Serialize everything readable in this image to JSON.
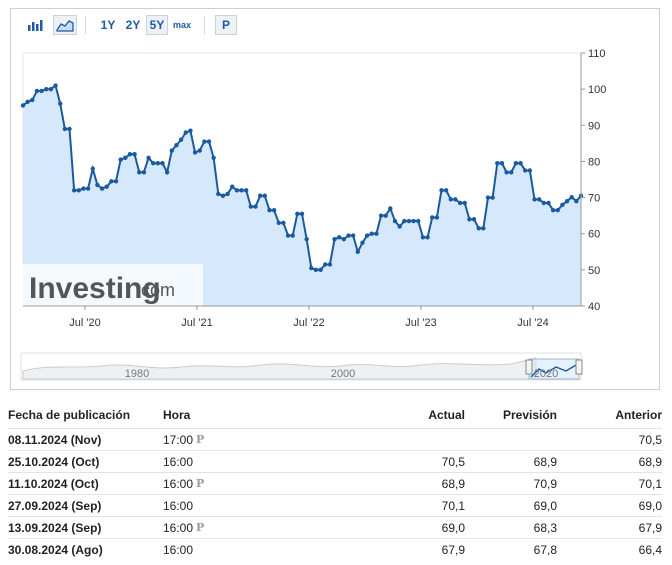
{
  "toolbar": {
    "chart_types": [
      "bar-chart-icon",
      "area-chart-icon"
    ],
    "ranges": [
      "1Y",
      "2Y",
      "5Y",
      "max"
    ],
    "selected_range": "5Y",
    "pin_label": "P"
  },
  "brand": {
    "logo_text": "Investing",
    "logo_suffix": ".com"
  },
  "colors": {
    "line": "#1a5aa0",
    "fill": "#d6e8fb",
    "positive": "#2a9d18",
    "negative": "#e0151b"
  },
  "chart_data": {
    "type": "area",
    "title": "",
    "xlabel": "",
    "ylabel": "",
    "ylim": [
      40,
      110
    ],
    "y_ticks": [
      40,
      50,
      60,
      70,
      80,
      90,
      100,
      110
    ],
    "x_tick_labels": [
      "Jul '20",
      "Jul '21",
      "Jul '22",
      "Jul '23",
      "Jul '24"
    ],
    "navigator_labels": [
      "1980",
      "2000",
      "2020"
    ],
    "series": [
      {
        "values": [
          95.5,
          96.5,
          97,
          99.5,
          99.5,
          100,
          100,
          101,
          96,
          89,
          89,
          72,
          72,
          72.5,
          72.5,
          78,
          73.5,
          72.5,
          73,
          74.5,
          74.5,
          80.5,
          81,
          82,
          82,
          77,
          77,
          81,
          79.5,
          79.5,
          79.5,
          77,
          83,
          84.5,
          86,
          88,
          88.5,
          82.5,
          83,
          85.5,
          85.5,
          81,
          71,
          70.5,
          71,
          73,
          72,
          72,
          72,
          67.5,
          67.5,
          70.5,
          70.5,
          66.5,
          66.5,
          63,
          63,
          59.5,
          59.5,
          65.5,
          65.5,
          58.5,
          50.5,
          50,
          50,
          51.5,
          51.5,
          58.5,
          59,
          58.5,
          59.5,
          59.5,
          55,
          57.5,
          59.5,
          60,
          60,
          65,
          65,
          67,
          63.5,
          62,
          63.5,
          63.5,
          63.5,
          63.5,
          59,
          59,
          64.5,
          64.5,
          72,
          72,
          69.5,
          69.5,
          68.5,
          68.5,
          64,
          64,
          61.5,
          61.5,
          70,
          70,
          79.5,
          79.5,
          77,
          77,
          79.5,
          79.5,
          77.5,
          77.5,
          69.5,
          69.5,
          68.5,
          68.5,
          66.5,
          66.5,
          68,
          69,
          70.1,
          69,
          70.5
        ]
      }
    ]
  },
  "table": {
    "headers": [
      "Fecha de publicación",
      "Hora",
      "Actual",
      "Previsión",
      "Anterior"
    ],
    "rows": [
      {
        "date": "08.11.2024 (Nov)",
        "time": "17:00",
        "prelim": "P",
        "actual": "",
        "actual_status": "",
        "forecast": "",
        "previous": "70,5"
      },
      {
        "date": "25.10.2024 (Oct)",
        "time": "16:00",
        "prelim": "",
        "actual": "70,5",
        "actual_status": "pos",
        "forecast": "68,9",
        "previous": "68,9"
      },
      {
        "date": "11.10.2024 (Oct)",
        "time": "16:00",
        "prelim": "P",
        "actual": "68,9",
        "actual_status": "neg",
        "forecast": "70,9",
        "previous": "70,1"
      },
      {
        "date": "27.09.2024 (Sep)",
        "time": "16:00",
        "prelim": "",
        "actual": "70,1",
        "actual_status": "pos",
        "forecast": "69,0",
        "previous": "69,0"
      },
      {
        "date": "13.09.2024 (Sep)",
        "time": "16:00",
        "prelim": "P",
        "actual": "69,0",
        "actual_status": "pos",
        "forecast": "68,3",
        "previous": "67,9"
      },
      {
        "date": "30.08.2024 (Ago)",
        "time": "16:00",
        "prelim": "",
        "actual": "67,9",
        "actual_status": "pos",
        "forecast": "67,8",
        "previous": "66,4"
      }
    ]
  }
}
